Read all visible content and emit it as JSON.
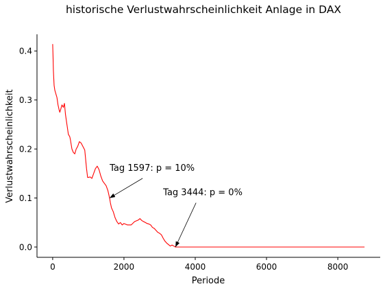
{
  "chart_data": {
    "type": "line",
    "title": "historische Verlustwahrscheinlichkeit Anlage in DAX",
    "xlabel": "Periode",
    "ylabel": "Verlustwahrscheinlichkeit",
    "xlim": [
      -440,
      9190
    ],
    "ylim": [
      -0.021,
      0.434
    ],
    "x_ticks": [
      0,
      2000,
      4000,
      6000,
      8000
    ],
    "x_tick_labels": [
      "0",
      "2000",
      "4000",
      "6000",
      "8000"
    ],
    "y_ticks": [
      0.0,
      0.1,
      0.2,
      0.3,
      0.4
    ],
    "y_tick_labels": [
      "0.0",
      "0.1",
      "0.2",
      "0.3",
      "0.4"
    ],
    "grid": false,
    "spines": "left-bottom",
    "series": [
      {
        "color": "#ff0000",
        "x": [
          0,
          10,
          20,
          40,
          60,
          80,
          100,
          120,
          150,
          180,
          200,
          230,
          260,
          300,
          330,
          360,
          400,
          440,
          480,
          500,
          540,
          580,
          620,
          660,
          700,
          750,
          800,
          850,
          900,
          950,
          980,
          1000,
          1050,
          1100,
          1150,
          1200,
          1250,
          1300,
          1350,
          1400,
          1450,
          1500,
          1550,
          1597,
          1620,
          1650,
          1700,
          1750,
          1800,
          1850,
          1900,
          1950,
          2000,
          2100,
          2200,
          2300,
          2400,
          2450,
          2500,
          2550,
          2600,
          2650,
          2700,
          2750,
          2800,
          2850,
          2900,
          2950,
          3000,
          3050,
          3100,
          3150,
          3200,
          3250,
          3300,
          3350,
          3400,
          3444,
          3500,
          4000,
          5000,
          6000,
          7000,
          8000,
          8750
        ],
        "y": [
          0.414,
          0.39,
          0.36,
          0.33,
          0.32,
          0.315,
          0.31,
          0.305,
          0.29,
          0.28,
          0.275,
          0.282,
          0.29,
          0.285,
          0.293,
          0.27,
          0.25,
          0.23,
          0.225,
          0.218,
          0.2,
          0.193,
          0.19,
          0.2,
          0.205,
          0.215,
          0.212,
          0.205,
          0.198,
          0.16,
          0.142,
          0.142,
          0.143,
          0.14,
          0.15,
          0.16,
          0.165,
          0.158,
          0.145,
          0.135,
          0.13,
          0.125,
          0.115,
          0.1,
          0.09,
          0.08,
          0.072,
          0.06,
          0.052,
          0.047,
          0.05,
          0.045,
          0.048,
          0.045,
          0.045,
          0.052,
          0.055,
          0.058,
          0.054,
          0.052,
          0.05,
          0.048,
          0.047,
          0.045,
          0.04,
          0.038,
          0.034,
          0.03,
          0.028,
          0.025,
          0.018,
          0.012,
          0.008,
          0.005,
          0.002,
          0.004,
          0.002,
          0.0,
          0.0,
          0.0,
          0.0,
          0.0,
          0.0,
          0.0,
          0.0
        ]
      }
    ],
    "annotations": [
      {
        "text": "Tag 1597: p = 10%",
        "xy": [
          1597,
          0.1
        ],
        "xytext": [
          1600,
          0.15
        ]
      },
      {
        "text": "Tag 3444: p = 0%",
        "xy": [
          3444,
          0.0
        ],
        "xytext": [
          3100,
          0.1
        ]
      }
    ]
  }
}
